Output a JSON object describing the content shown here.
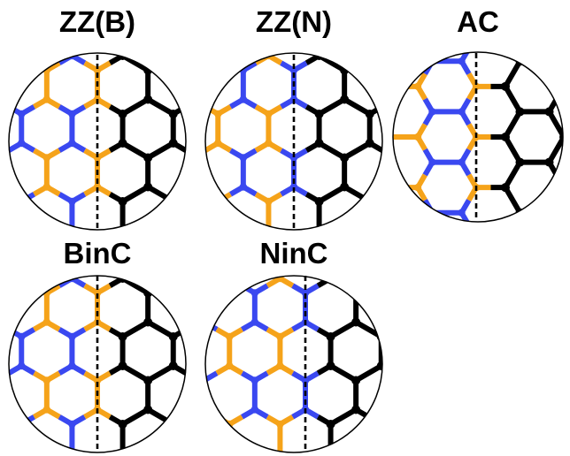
{
  "colors": {
    "boron": "#f5a31a",
    "nitrogen": "#3a48f0",
    "carbon": "#000000",
    "boundary": "#000000",
    "circle": "#000000"
  },
  "panels": [
    {
      "id": "zzb",
      "title": "ZZ(B)",
      "lattice": "zigzag",
      "start": "B"
    },
    {
      "id": "zzn",
      "title": "ZZ(N)",
      "lattice": "zigzag",
      "start": "N"
    },
    {
      "id": "ac",
      "title": "AC",
      "lattice": "armchair",
      "start": "B"
    },
    {
      "id": "binc",
      "title": "BinC",
      "lattice": "zigzag",
      "start": "B"
    },
    {
      "id": "ninc",
      "title": "NinC",
      "lattice": "zigzag",
      "start": "N"
    }
  ]
}
